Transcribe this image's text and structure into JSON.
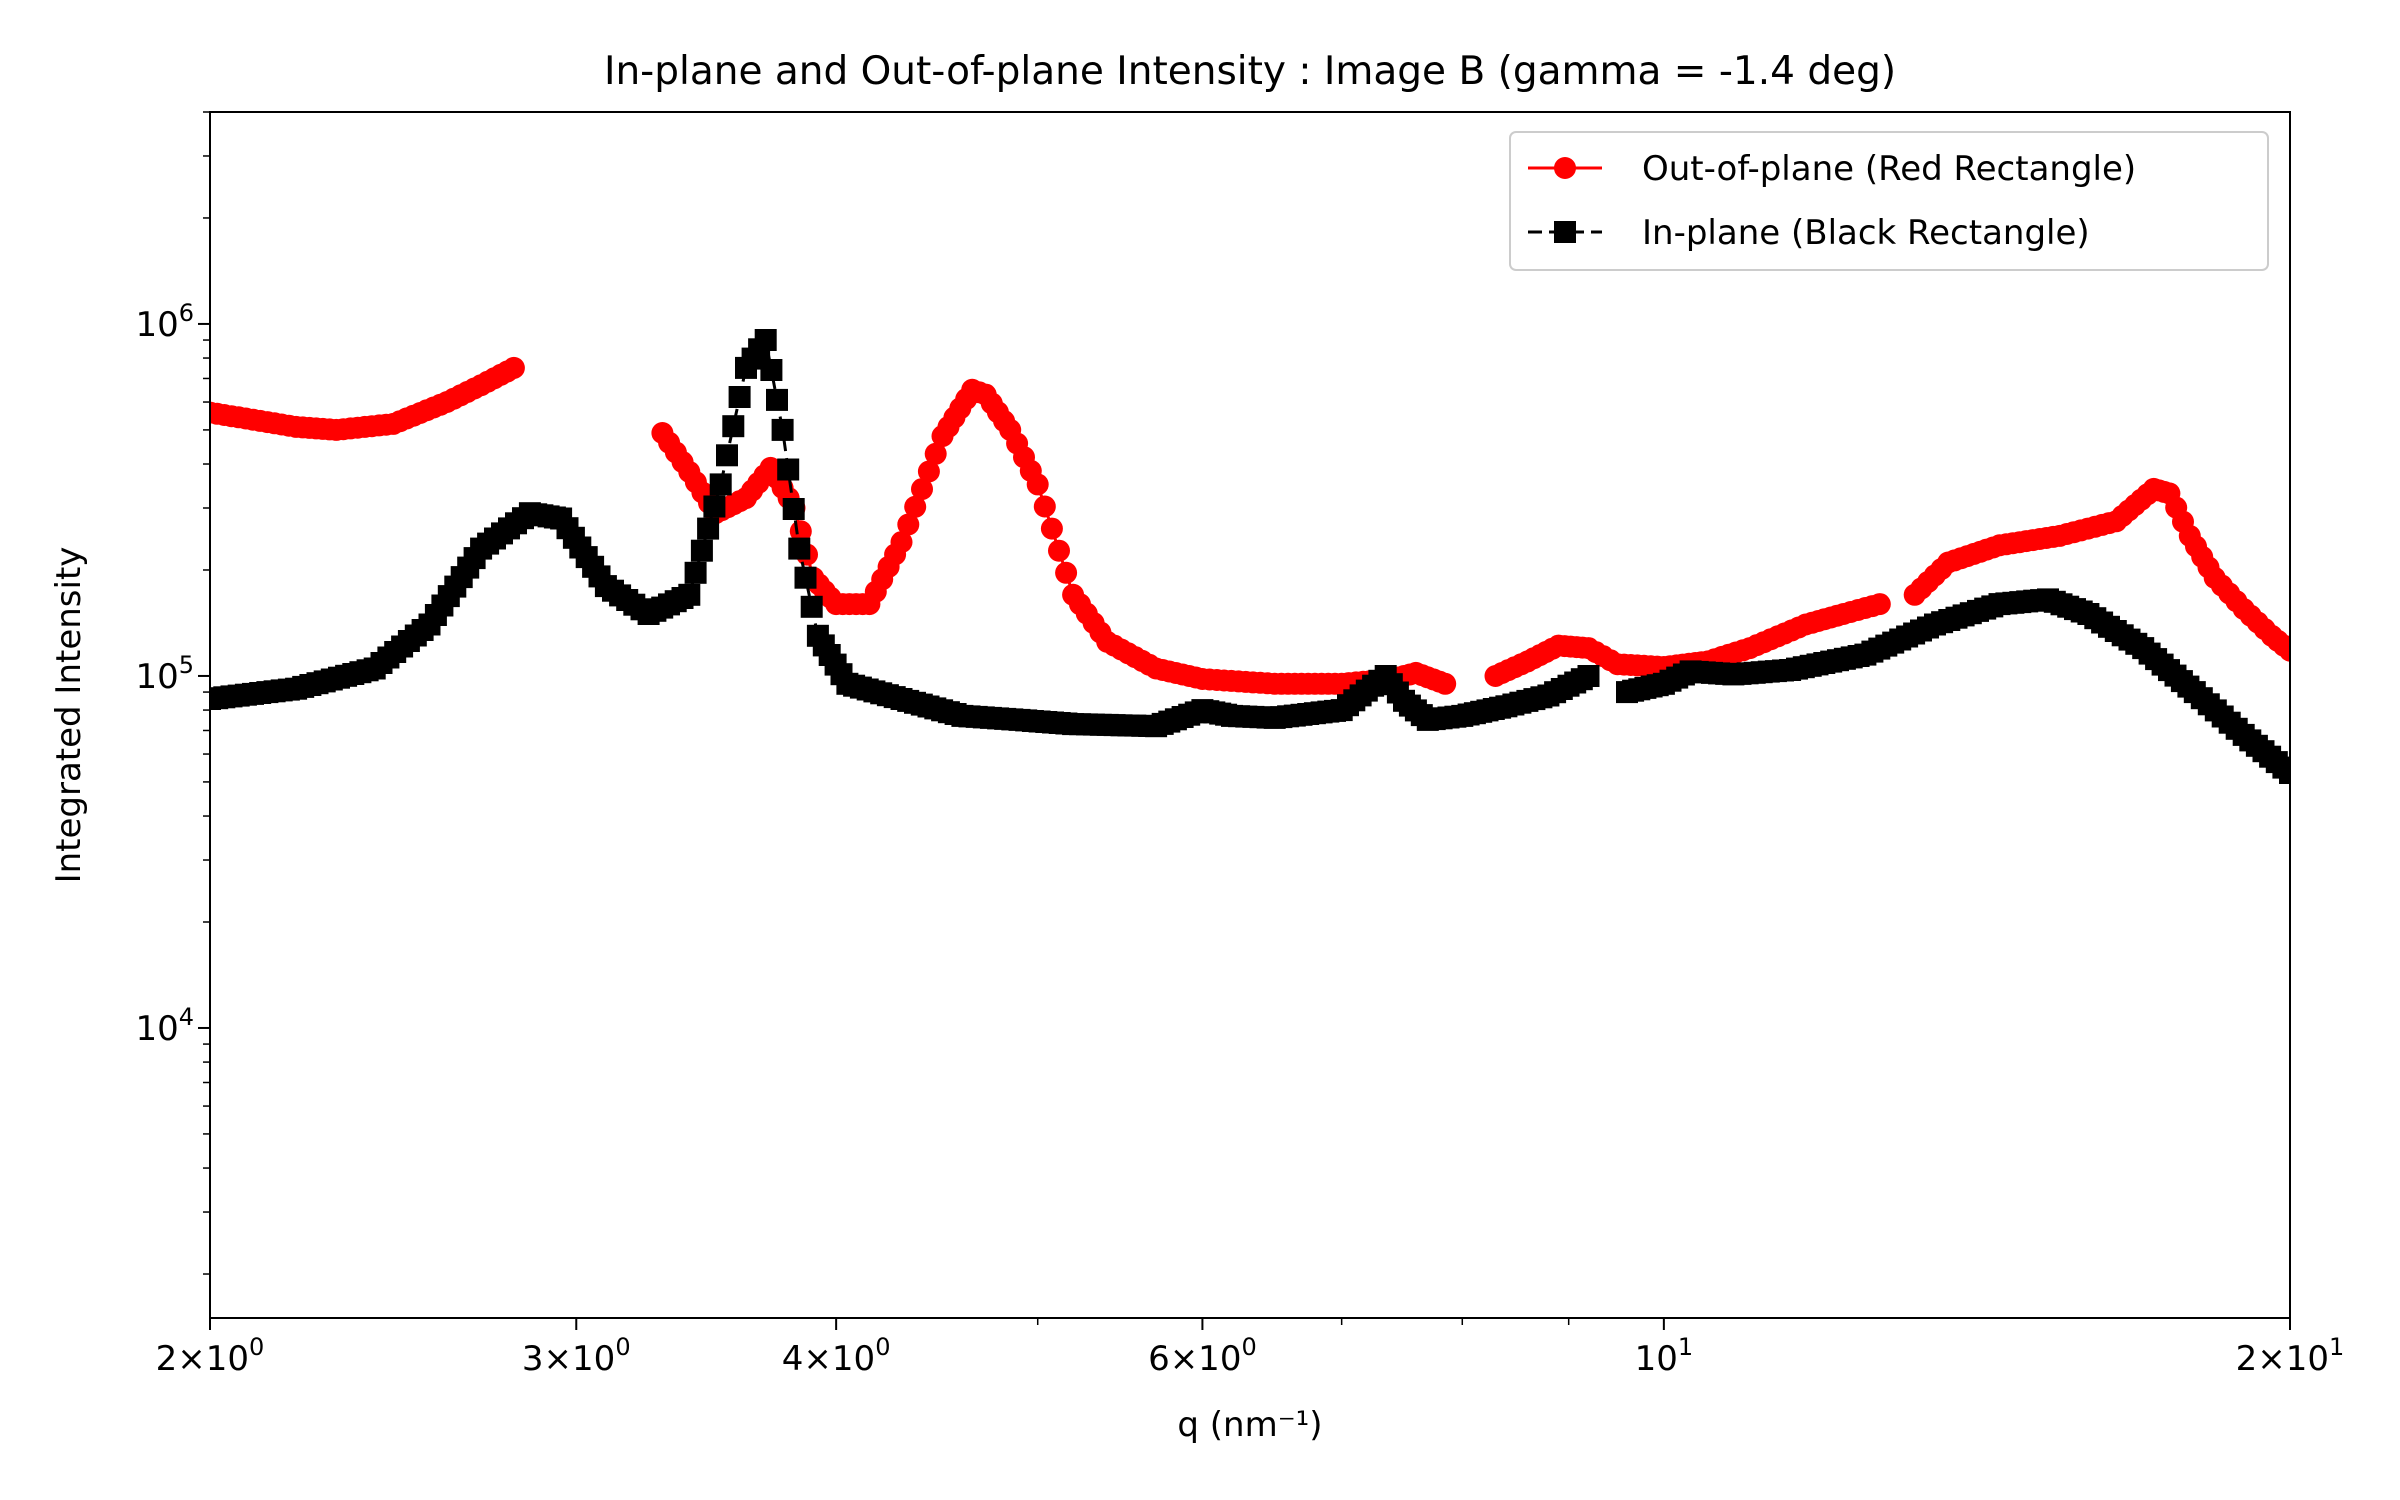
{
  "chart_data": {
    "type": "line",
    "title": "In-plane and Out-of-plane Intensity : Image B (gamma = -1.4 deg)",
    "xlabel": "q (nm⁻¹)",
    "ylabel": "Integrated Intensity",
    "xscale": "log",
    "yscale": "log",
    "xlim": [
      2,
      20
    ],
    "ylim": [
      1500,
      4000000
    ],
    "grid": false,
    "legend_position": "top-right",
    "xticks": [
      {
        "value": 2,
        "mantissa": "2",
        "base": "10",
        "exp": "0"
      },
      {
        "value": 3,
        "mantissa": "3",
        "base": "10",
        "exp": "0"
      },
      {
        "value": 4,
        "mantissa": "4",
        "base": "10",
        "exp": "0"
      },
      {
        "value": 6,
        "mantissa": "6",
        "base": "10",
        "exp": "0"
      },
      {
        "value": 10,
        "mantissa": "",
        "base": "10",
        "exp": "1"
      },
      {
        "value": 20,
        "mantissa": "2",
        "base": "10",
        "exp": "1"
      }
    ],
    "yticks": [
      {
        "value": 10000,
        "base": "10",
        "exp": "4"
      },
      {
        "value": 100000,
        "base": "10",
        "exp": "5"
      },
      {
        "value": 1000000,
        "base": "10",
        "exp": "6"
      }
    ],
    "series": [
      {
        "name": "Out-of-plane (Red Rectangle)",
        "color": "#ff0000",
        "marker": "circle",
        "linestyle": "solid",
        "segments": [
          {
            "x": [
              2.0,
              2.2,
              2.3,
              2.45,
              2.6,
              2.7,
              2.8
            ],
            "y": [
              560000,
              510000,
              500000,
              520000,
              600000,
              670000,
              750000
            ]
          },
          {
            "x": [
              3.3,
              3.4,
              3.5,
              3.62,
              3.72,
              3.82,
              3.9,
              4.0,
              4.15,
              4.3,
              4.5,
              4.65,
              4.72,
              4.85,
              5.0,
              5.2,
              5.4,
              5.7,
              6.0,
              6.5,
              7.0,
              7.4,
              7.6,
              7.85
            ],
            "y": [
              490000,
              380000,
              290000,
              320000,
              390000,
              300000,
              190000,
              160000,
              160000,
              240000,
              480000,
              650000,
              630000,
              500000,
              350000,
              170000,
              125000,
              105000,
              98000,
              95000,
              95000,
              98000,
              102000,
              95000
            ]
          },
          {
            "x": [
              8.3,
              8.6,
              8.9,
              9.2,
              9.5,
              10.0,
              10.5,
              11.0,
              11.7,
              12.2,
              12.7
            ],
            "y": [
              100000,
              110000,
              122000,
              120000,
              108000,
              106000,
              110000,
              120000,
              140000,
              150000,
              160000
            ]
          },
          {
            "x": [
              13.2,
              13.7,
              14.5,
              15.5,
              16.5,
              17.2,
              17.5,
              17.9,
              18.4,
              19.0,
              19.6,
              20.0
            ],
            "y": [
              170000,
              210000,
              235000,
              250000,
              275000,
              340000,
              330000,
              250000,
              190000,
              155000,
              130000,
              118000
            ]
          }
        ]
      },
      {
        "name": "In-plane (Black Rectangle)",
        "color": "#000000",
        "marker": "square",
        "linestyle": "dashed",
        "segments": [
          {
            "x": [
              2.0,
              2.2,
              2.4,
              2.55,
              2.7,
              2.85,
              2.95,
              3.1,
              3.25,
              3.4,
              3.52,
              3.62,
              3.7,
              3.77,
              3.84,
              3.92,
              4.05,
              4.3,
              4.6,
              4.9,
              5.2,
              5.7,
              6.0,
              6.2,
              6.5,
              7.0,
              7.35,
              7.5,
              7.7,
              8.0,
              8.4,
              8.8,
              9.2
            ],
            "y": [
              86000,
              92000,
              105000,
              140000,
              230000,
              290000,
              280000,
              180000,
              150000,
              170000,
              350000,
              750000,
              900000,
              500000,
              230000,
              130000,
              95000,
              86000,
              77000,
              75000,
              73000,
              72000,
              80000,
              77000,
              76000,
              80000,
              100000,
              85000,
              75000,
              77000,
              82000,
              88000,
              100000
            ]
          },
          {
            "x": [
              9.6,
              10.0,
              10.3,
              10.8,
              11.5,
              12.5,
              13.5,
              14.5,
              15.3,
              16.0,
              17.0,
              18.0,
              19.0,
              20.0
            ],
            "y": [
              90000,
              95000,
              103000,
              101000,
              104000,
              115000,
              140000,
              160000,
              165000,
              150000,
              120000,
              90000,
              68000,
              53000
            ]
          }
        ]
      }
    ]
  }
}
